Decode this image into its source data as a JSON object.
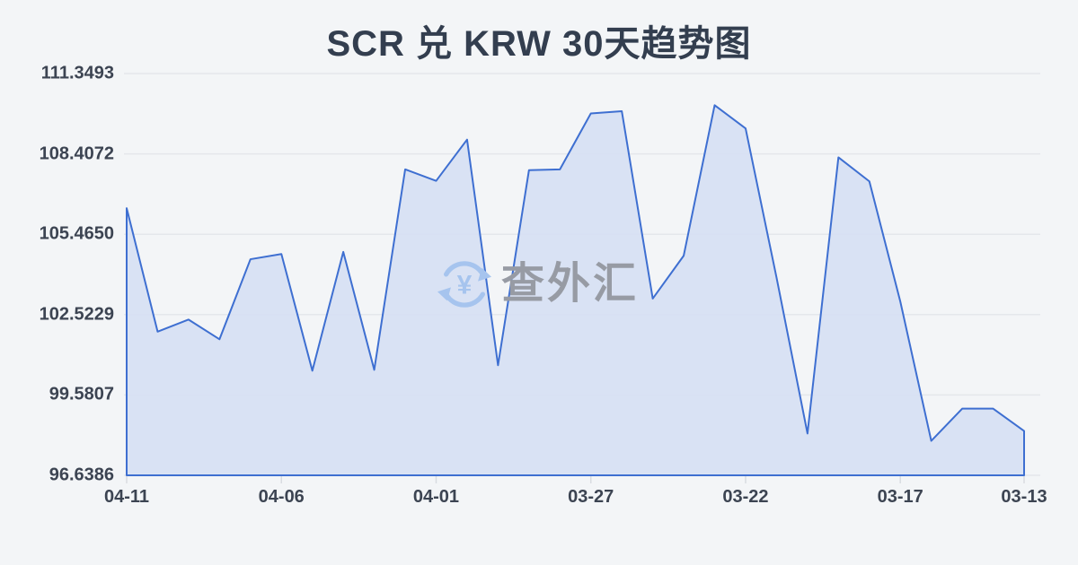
{
  "title": "SCR 兑 KRW 30天趋势图",
  "watermark": {
    "icon": "currency-exchange-icon",
    "symbol": "¥",
    "text": "查外汇"
  },
  "colors": {
    "background": "#f3f5f7",
    "line": "#3e6fd1",
    "fill": "#d7dff3",
    "grid": "#e4e7eb",
    "tick": "#d9dce1",
    "axis_text": "#3c4452",
    "title_text": "#333e4f",
    "watermark_blue": "#a6c4ee",
    "watermark_gray": "#979ba4"
  },
  "chart_data": {
    "type": "area",
    "title": "SCR 兑 KRW 30天趋势图",
    "x": [
      "04-11",
      "04-10",
      "04-09",
      "04-08",
      "04-07",
      "04-06",
      "04-05",
      "04-04",
      "04-03",
      "04-02",
      "04-01",
      "03-31",
      "03-30",
      "03-29",
      "03-28",
      "03-27",
      "03-26",
      "03-25",
      "03-24",
      "03-23",
      "03-22",
      "03-21",
      "03-20",
      "03-19",
      "03-18",
      "03-17",
      "03-16",
      "03-15",
      "03-14",
      "03-13"
    ],
    "values": [
      106.42,
      101.9,
      102.34,
      101.62,
      104.55,
      104.74,
      100.47,
      104.82,
      100.5,
      107.84,
      107.42,
      108.93,
      100.67,
      107.81,
      107.84,
      109.89,
      109.97,
      103.11,
      104.68,
      110.19,
      109.34,
      103.88,
      98.17,
      108.28,
      107.4,
      103.0,
      97.9,
      99.08,
      99.08,
      98.26
    ],
    "x_tick_labels": [
      "04-11",
      "04-06",
      "04-01",
      "03-27",
      "03-22",
      "03-17",
      "03-13"
    ],
    "x_tick_indices": [
      0,
      5,
      10,
      15,
      20,
      25,
      29
    ],
    "y_tick_labels": [
      "111.3493",
      "108.4072",
      "105.4650",
      "102.5229",
      "99.5807",
      "96.6386"
    ],
    "ylim": [
      96.6386,
      111.3493
    ],
    "x_order": "newest-to-oldest",
    "grid": "horizontal",
    "legend": "none"
  }
}
